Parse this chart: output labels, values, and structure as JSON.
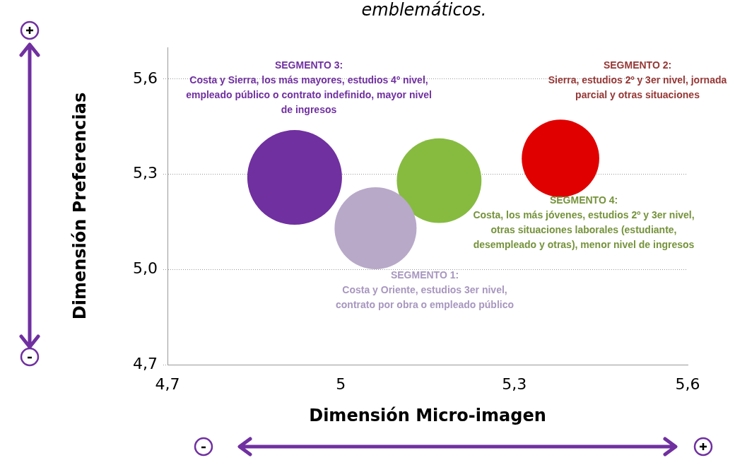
{
  "chart_data": {
    "type": "bubble",
    "title": "emblemáticos.",
    "xlabel": "Dimensión Micro-imagen",
    "ylabel": "Dimensión Preferencias",
    "xlim": [
      4.7,
      5.6
    ],
    "xticks": [
      {
        "value": 4.7,
        "label": "4,7"
      },
      5,
      {
        "value": 5.3,
        "label": "5,3"
      },
      {
        "value": 5.6,
        "label": "5,6"
      }
    ],
    "ylim": [
      4.7,
      5.7
    ],
    "yticks": [
      {
        "value": 4.7,
        "label": "4,7"
      },
      {
        "value": 5.0,
        "label": "5,0"
      },
      {
        "value": 5.3,
        "label": "5,3"
      },
      {
        "value": 5.6,
        "label": "5,6"
      }
    ],
    "grid": "y",
    "legend": false,
    "series": [
      {
        "name": "SEGMENTO 1: Costa y Oriente, estudios 3er nivel, contrato por obra o empleado público",
        "color": "#b8a9c9",
        "x": [
          5.06
        ],
        "values": [
          5.13
        ],
        "sizes": [
          0.75
        ]
      },
      {
        "name": "SEGMENTO 2: Sierra, estudios 2º y 3er nivel, jornada parcial y otras situaciones",
        "color": "#e00000",
        "x": [
          5.38
        ],
        "values": [
          5.35
        ],
        "sizes": [
          0.67
        ]
      },
      {
        "name": "SEGMENTO 3: Costa y Sierra, los más mayores, estudios 4º nivel, empleado público o contrato indefinido, mayor nivel de ingresos",
        "color": "#7030a0",
        "x": [
          4.92
        ],
        "values": [
          5.29
        ],
        "sizes": [
          1
        ]
      },
      {
        "name": "SEGMENTO 4: Costa, los más jóvenes, estudios 2º y 3er nivel, otras situaciones laborales (estudiante, desempleado y otras), menor nivel de ingresos",
        "color": "#86bb40",
        "x": [
          5.17
        ],
        "values": [
          5.28
        ],
        "sizes": [
          0.8
        ]
      }
    ]
  }
}
